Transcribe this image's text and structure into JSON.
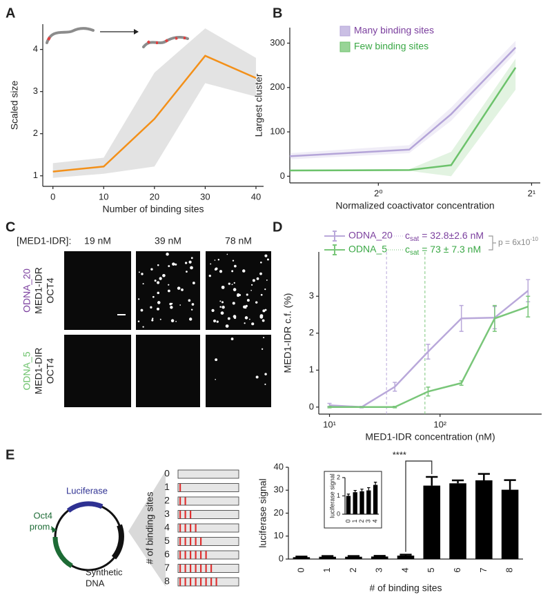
{
  "panel_labels": [
    "A",
    "B",
    "C",
    "D",
    "E"
  ],
  "chart_data": [
    {
      "type": "line",
      "xlabel": "Number of binding sites",
      "ylabel": "Scaled size",
      "x": [
        0,
        10,
        20,
        30,
        40
      ],
      "series": [
        {
          "color": "#f39019",
          "band_color": "#e3e3e3",
          "values": [
            1.1,
            1.22,
            2.35,
            3.85,
            3.32
          ],
          "lower": [
            0.95,
            1.05,
            1.22,
            3.2,
            2.88
          ],
          "upper": [
            1.3,
            1.43,
            3.45,
            4.5,
            3.8
          ]
        }
      ],
      "xlim": [
        -2,
        41.5
      ],
      "ylim": [
        0.75,
        4.6
      ],
      "xticks": [
        0,
        10,
        20,
        30,
        40
      ],
      "yticks": [
        1,
        2,
        3,
        4
      ]
    },
    {
      "type": "line",
      "xlabel": "Normalized coactivator concentration",
      "ylabel": "Largest cluster",
      "xscale": "log",
      "legend": "upper left",
      "x": [
        0.67,
        1.15,
        1.39,
        1.86
      ],
      "series": [
        {
          "name": "Many binding sites",
          "color": "#b4a4d8",
          "text_color": "#7b3f9e",
          "values": [
            45,
            60,
            140,
            290
          ],
          "lower": [
            38,
            52,
            125,
            278
          ],
          "upper": [
            52,
            70,
            155,
            305
          ]
        },
        {
          "name": "Few binding sites",
          "color": "#6cc26b",
          "text_color": "#3aa845",
          "values": [
            13,
            14,
            25,
            245
          ],
          "lower": [
            11,
            12,
            0,
            195
          ],
          "upper": [
            15,
            16,
            55,
            265
          ]
        }
      ],
      "xlim": [
        0.67,
        2.08
      ],
      "ylim": [
        -15,
        335
      ],
      "xticks": [
        {
          "value": 1,
          "label": "2⁰"
        },
        {
          "value": 2,
          "label": "2¹"
        }
      ],
      "yticks": [
        0,
        100,
        200,
        300
      ]
    },
    {
      "type": "errorbar_line",
      "xlabel": "MED1-IDR concentration (nM)",
      "ylabel": "MED1-IDR c.f. (%)",
      "xscale": "log",
      "csat_symbol": "c",
      "csat_subscript": "sat",
      "p_label": "p = 6x10",
      "p_exponent": "-10",
      "x": [
        10,
        19.5,
        39,
        78,
        156,
        312,
        625
      ],
      "series": [
        {
          "name": "ODNA_20",
          "color": "#b9a8da",
          "text_color": "#7b3f9e",
          "values": [
            0.05,
            0.0,
            0.55,
            1.5,
            2.4,
            2.42,
            3.15
          ],
          "errors": [
            0.05,
            0.02,
            0.12,
            0.2,
            0.35,
            0.3,
            0.3
          ],
          "csat": 32.8,
          "csat_label": " = 32.8±2.6 nM"
        },
        {
          "name": "ODNA_5",
          "color": "#79c679",
          "text_color": "#3aa845",
          "values": [
            0.0,
            0.0,
            0.0,
            0.42,
            0.65,
            2.4,
            2.72
          ],
          "errors": [
            0.02,
            0.01,
            0.02,
            0.12,
            0.06,
            0.35,
            0.28
          ],
          "csat": 73,
          "csat_label": " = 73 ± 7.3 nM"
        }
      ],
      "xlim": [
        8,
        830
      ],
      "ylim": [
        -0.19,
        4.2
      ],
      "xticks": [
        {
          "value": 10,
          "label": "10¹"
        },
        {
          "value": 100,
          "label": "10²"
        }
      ],
      "yticks": [
        0,
        1,
        2,
        3
      ]
    },
    {
      "type": "bar",
      "xlabel": "# of binding sites",
      "ylabel": "luciferase signal",
      "color": "#000000",
      "categories": [
        "0",
        "1",
        "2",
        "3",
        "4",
        "5",
        "6",
        "7",
        "8"
      ],
      "values": [
        0.8,
        1.0,
        1.0,
        1.1,
        1.5,
        32,
        33,
        34.3,
        30.2
      ],
      "errors": [
        0.3,
        0.3,
        0.3,
        0.3,
        0.4,
        3.8,
        1.3,
        2.8,
        4.2
      ],
      "annotation": "****",
      "ylim": [
        0,
        40
      ],
      "yticks": [
        0,
        10,
        20,
        30,
        40
      ]
    },
    {
      "type": "bar",
      "ylabel": "luciferase signal",
      "color": "#000000",
      "categories": [
        "0",
        "1",
        "2",
        "3",
        "4"
      ],
      "values": [
        1.0,
        1.2,
        1.25,
        1.3,
        1.6
      ],
      "errors": [
        0.1,
        0.1,
        0.12,
        0.15,
        0.15
      ],
      "ylim": [
        0,
        2
      ],
      "yticks": [
        0,
        1,
        2
      ]
    }
  ],
  "panel_c": {
    "concentration_label": "[MED1-IDR]:",
    "concentrations": [
      "19 nM",
      "39 nM",
      "78 nM"
    ],
    "rows": [
      {
        "lines": [
          "ODNA_20",
          "MED1-IDR",
          "OCT4"
        ],
        "color": "#7b3f9e"
      },
      {
        "lines": [
          "ODNA_5",
          "MED1-DIR",
          "OCT4"
        ],
        "color": "#6cc26b"
      }
    ]
  },
  "panel_e_diagram": {
    "gene_label": "Luciferase",
    "promoter_label": [
      "Oct4",
      "prom."
    ],
    "dna_label": [
      "Synthetic",
      "DNA"
    ],
    "axis_label": "# of binding sites",
    "counts": [
      0,
      1,
      2,
      3,
      4,
      5,
      6,
      7,
      8
    ]
  }
}
